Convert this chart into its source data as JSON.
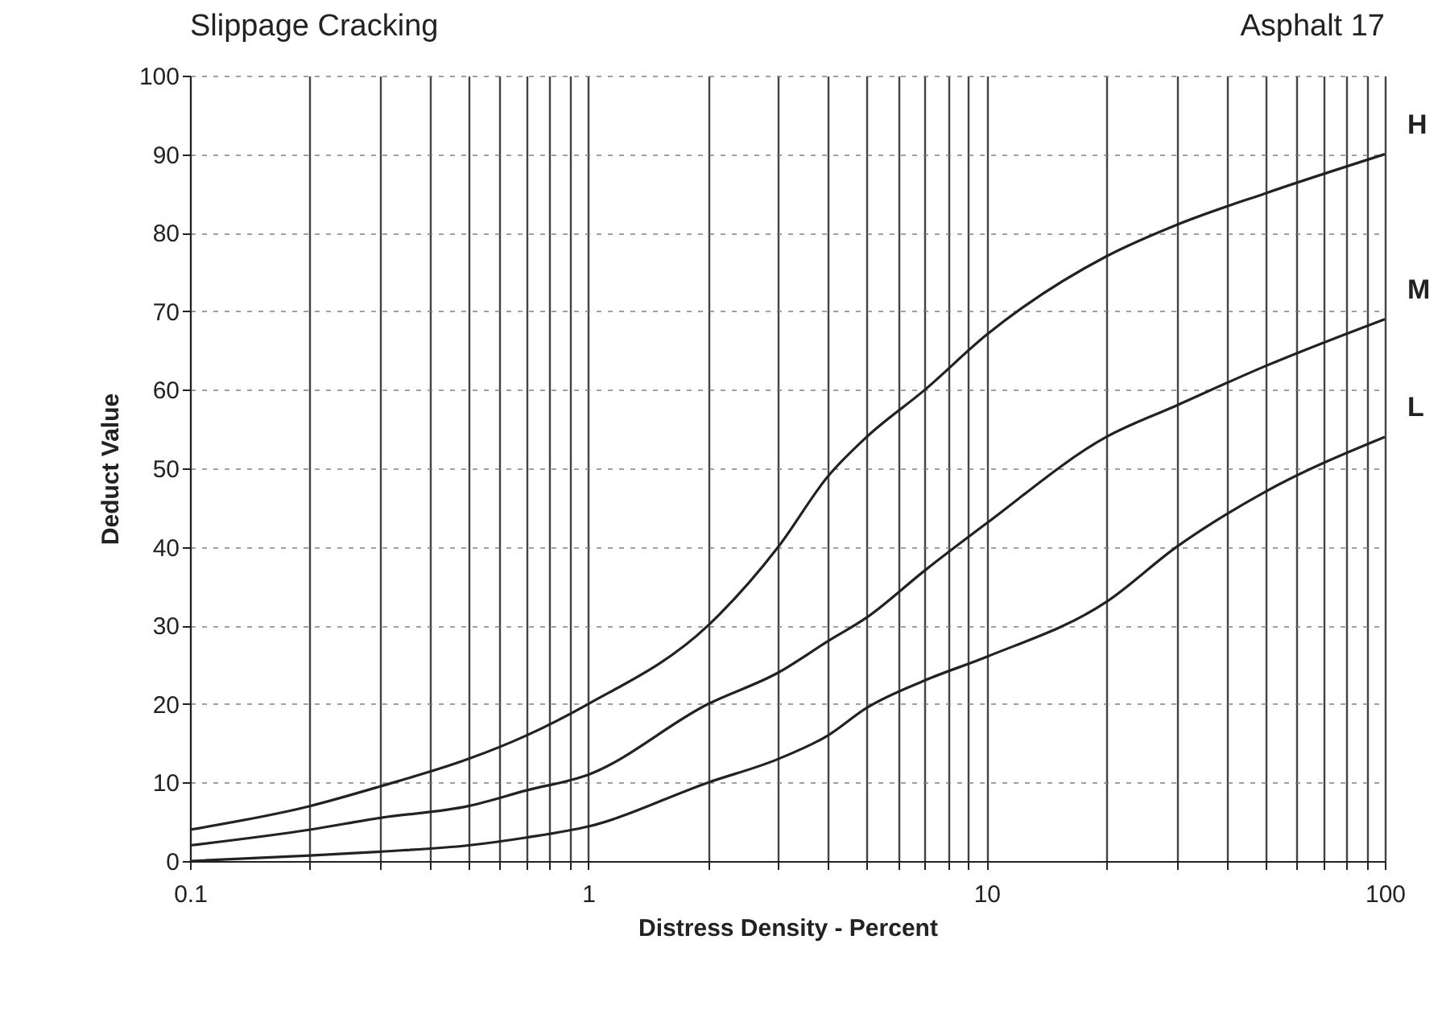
{
  "chart_data": {
    "type": "line",
    "title": "Slippage Cracking",
    "subtitle": "Asphalt 17",
    "xlabel": "Distress Density - Percent",
    "ylabel": "Deduct Value",
    "log": "x",
    "grid": true,
    "legend": false,
    "marker": "none",
    "line_style": "solid",
    "xlim": [
      0.1,
      100
    ],
    "ylim": [
      0,
      100
    ],
    "xticks": [
      0.1,
      {
        "value": 0.2,
        "label": null
      },
      {
        "value": 0.3,
        "label": null
      },
      {
        "value": 0.4,
        "label": null
      },
      {
        "value": 0.5,
        "label": null
      },
      {
        "value": 0.6,
        "label": null
      },
      {
        "value": 0.7,
        "label": null
      },
      {
        "value": 0.8,
        "label": null
      },
      {
        "value": 0.9,
        "label": null
      },
      1,
      {
        "value": 2,
        "label": null
      },
      {
        "value": 3,
        "label": null
      },
      {
        "value": 4,
        "label": null
      },
      {
        "value": 5,
        "label": null
      },
      {
        "value": 6,
        "label": null
      },
      {
        "value": 7,
        "label": null
      },
      {
        "value": 8,
        "label": null
      },
      {
        "value": 9,
        "label": null
      },
      10,
      {
        "value": 20,
        "label": null
      },
      {
        "value": 30,
        "label": null
      },
      {
        "value": 40,
        "label": null
      },
      {
        "value": 50,
        "label": null
      },
      {
        "value": 60,
        "label": null
      },
      {
        "value": 70,
        "label": null
      },
      {
        "value": 80,
        "label": null
      },
      {
        "value": 90,
        "label": null
      },
      100
    ],
    "yticks": [
      0,
      10,
      20,
      30,
      40,
      50,
      60,
      70,
      80,
      90,
      100
    ],
    "x": [
      0.1,
      0.2,
      0.3,
      0.5,
      0.7,
      1,
      2,
      3,
      4,
      5,
      7,
      10,
      20,
      30,
      50,
      100
    ],
    "series": [
      {
        "name": "H",
        "color": "#222222",
        "values": [
          4,
          7,
          9.5,
          13,
          16,
          20,
          30,
          40,
          49,
          54,
          60,
          67,
          77,
          81,
          85,
          90
        ]
      },
      {
        "name": "M",
        "color": "#222222",
        "values": [
          2,
          4,
          5.5,
          7,
          9,
          11,
          20,
          24,
          28,
          31,
          37,
          43,
          54,
          58,
          63,
          69
        ]
      },
      {
        "name": "L",
        "color": "#222222",
        "values": [
          0,
          0.7,
          1.2,
          2,
          3,
          4.4,
          10,
          13,
          16,
          19.5,
          23,
          26,
          33,
          40,
          47,
          54
        ]
      }
    ]
  }
}
